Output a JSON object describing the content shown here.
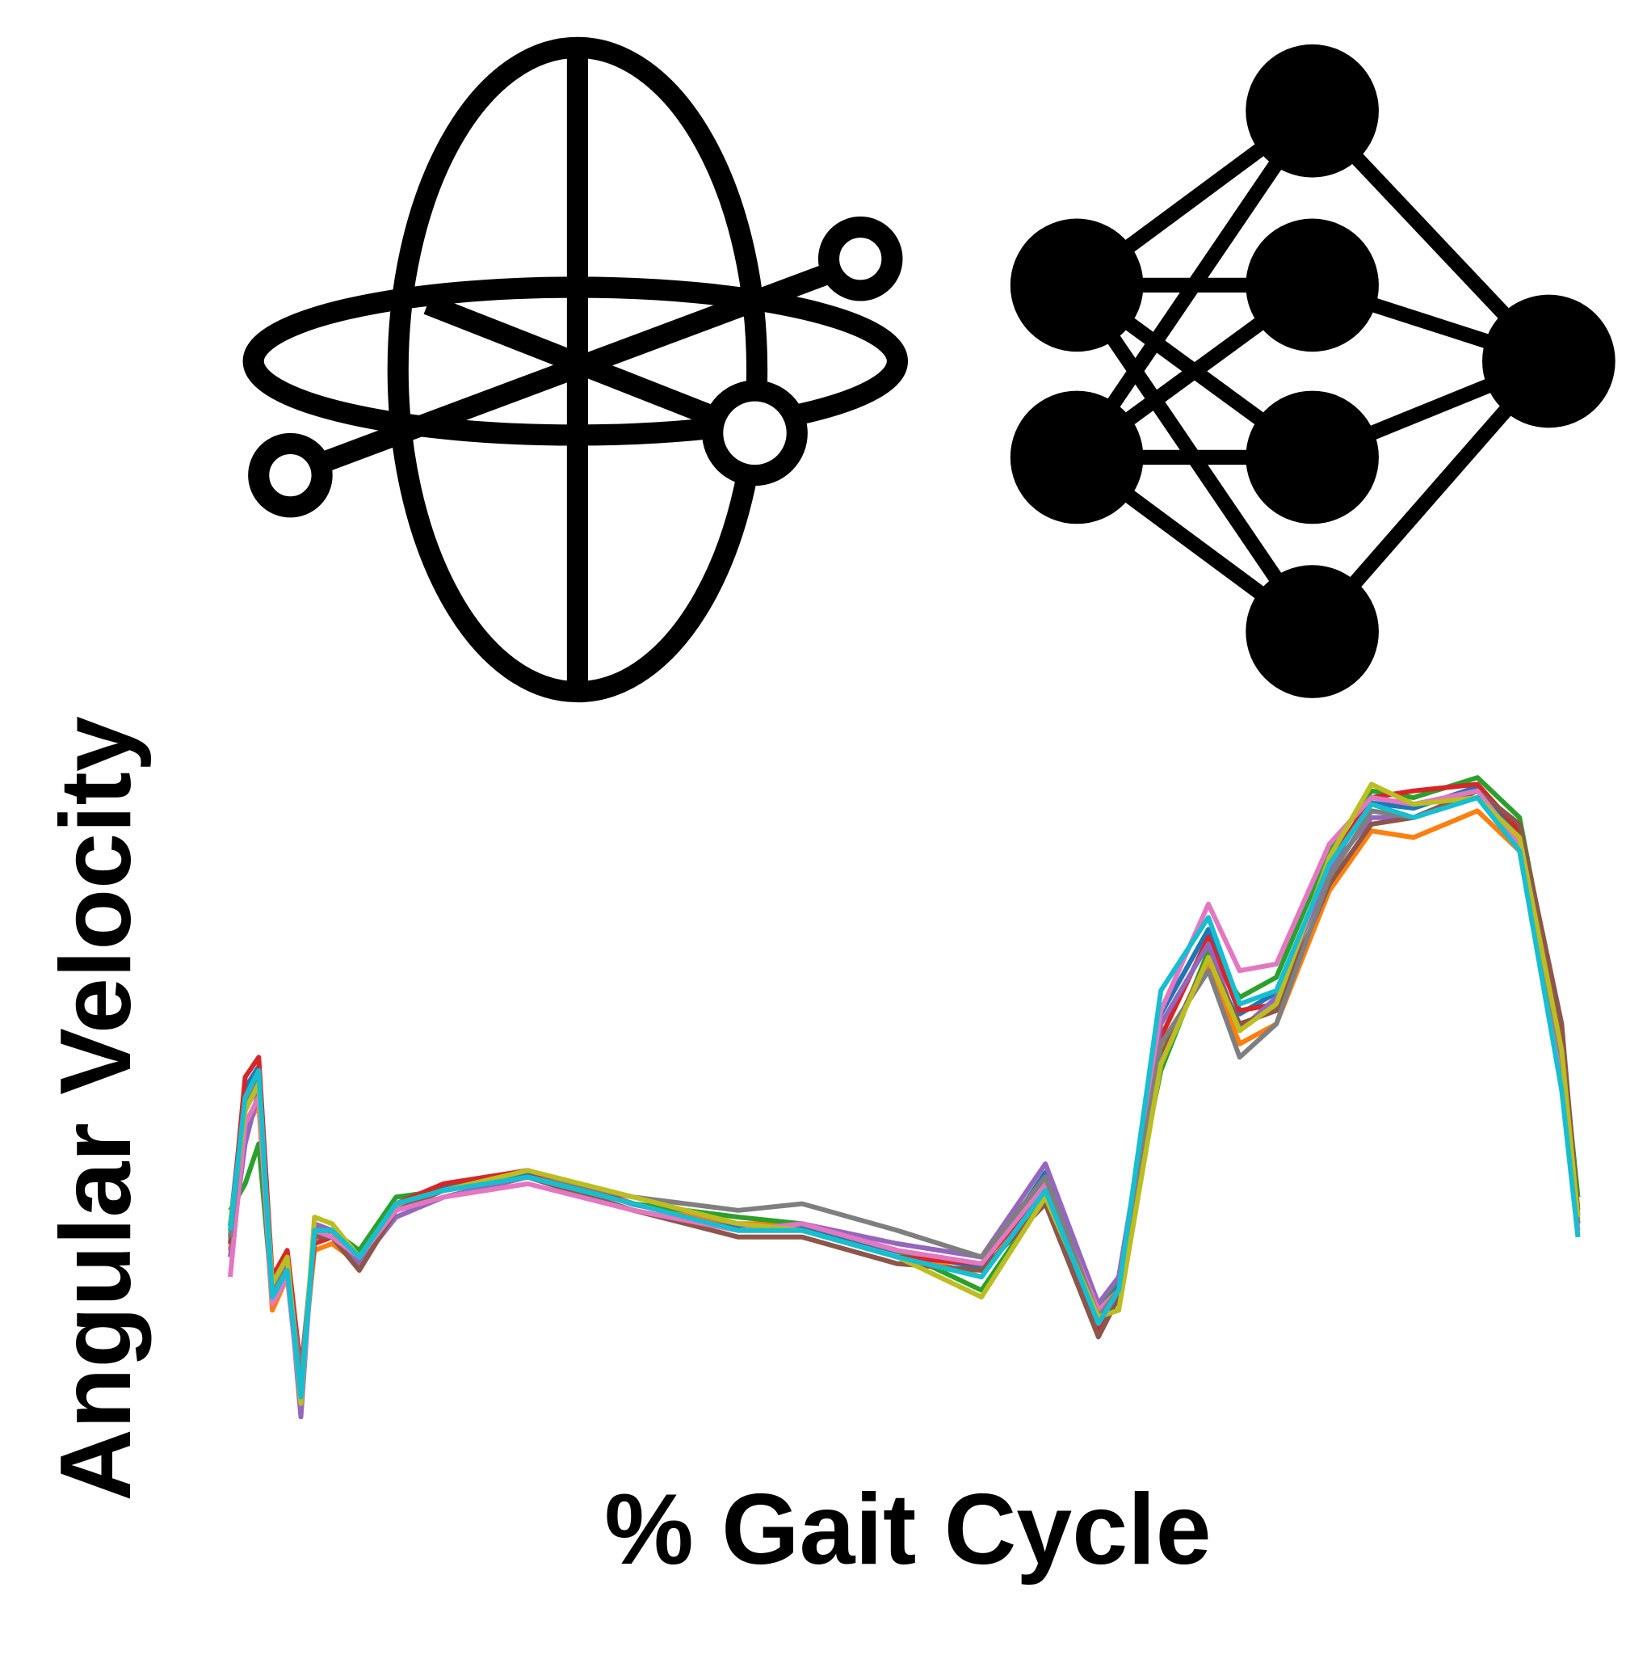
{
  "chart_data": {
    "type": "line",
    "x_label": "% Gait Cycle",
    "y_label": "Angular Velocity",
    "xlim": [
      0,
      100
    ],
    "ylim": [
      0,
      100
    ],
    "x": [
      0,
      1.1,
      2.1,
      3.1,
      4.2,
      5.2,
      6.2,
      7.5,
      9.5,
      12.2,
      15.7,
      21.9,
      29.7,
      37.4,
      42.1,
      49.1,
      55.3,
      60,
      63.9,
      65.4,
      68.5,
      72,
      74.3,
      77,
      80.9,
      84,
      87.1,
      91.8,
      94.9,
      98,
      99.2
    ],
    "series": [
      {
        "color": "#1f77b4",
        "values": [
          31.7,
          52.4,
          55.6,
          22.2,
          27,
          4.8,
          31.7,
          30.9,
          27,
          34.9,
          37.3,
          39.7,
          34.9,
          31.7,
          31.7,
          27.8,
          25.4,
          39.7,
          18.3,
          23,
          63.5,
          76.2,
          63.5,
          66.7,
          85.7,
          95.2,
          94.4,
          97.6,
          90.5,
          57.1,
          33.3
        ]
      },
      {
        "color": "#ff7f0e",
        "values": [
          28,
          46,
          50,
          19,
          24,
          8,
          28,
          29,
          26,
          33,
          36,
          39,
          35,
          32,
          32,
          28,
          24,
          38,
          17,
          21,
          58,
          71,
          59,
          62,
          82,
          91,
          90,
          94,
          88,
          54,
          30
        ]
      },
      {
        "color": "#2ca02c",
        "values": [
          34,
          38,
          44,
          21,
          25,
          6,
          30,
          31,
          28,
          36,
          37,
          39,
          35,
          33,
          32,
          28,
          22,
          36,
          19,
          24,
          55,
          73,
          66,
          69,
          88,
          97,
          96,
          99,
          93,
          60,
          36
        ]
      },
      {
        "color": "#d62728",
        "values": [
          30,
          54,
          57,
          24,
          28,
          10,
          29,
          30,
          27,
          35,
          38,
          40,
          35,
          31,
          31,
          27,
          26,
          37,
          16,
          22,
          60,
          75,
          64,
          65,
          86,
          96,
          97,
          98,
          91,
          58,
          32
        ]
      },
      {
        "color": "#9467bd",
        "values": [
          27,
          44,
          52,
          20,
          26,
          3,
          32,
          31,
          26,
          33,
          36,
          39,
          34,
          31,
          32,
          29,
          27,
          41,
          20,
          24,
          62,
          74,
          61,
          66,
          85,
          93,
          93,
          96,
          89,
          56,
          31
        ]
      },
      {
        "color": "#8c564b",
        "values": [
          29,
          49,
          53,
          23,
          27,
          7,
          30,
          30,
          25,
          34,
          37,
          39,
          34,
          30,
          30,
          26,
          25,
          35,
          15,
          21,
          57,
          72,
          62,
          64,
          83,
          92,
          93,
          97,
          92,
          62,
          34
        ]
      },
      {
        "color": "#e377c2",
        "values": [
          24,
          47,
          51,
          20,
          24,
          5,
          31,
          30,
          27,
          34,
          36,
          38,
          34,
          31,
          32,
          28,
          26,
          38,
          19,
          22,
          64,
          80,
          70,
          71,
          89,
          96,
          95,
          97,
          89,
          55,
          31
        ]
      },
      {
        "color": "#7f7f7f",
        "values": [
          30,
          50,
          54,
          22,
          26,
          9,
          31,
          31,
          27,
          35,
          37,
          39,
          36,
          34,
          35,
          31,
          27,
          39,
          18,
          22,
          59,
          70,
          57,
          62,
          84,
          94,
          93,
          96,
          90,
          57,
          32
        ]
      },
      {
        "color": "#bcbd22",
        "values": [
          32,
          49,
          53,
          23,
          27,
          5,
          33,
          32,
          27,
          35,
          37,
          40,
          36,
          32,
          31,
          27,
          21,
          36,
          18,
          19,
          56,
          72,
          61,
          65,
          87,
          98,
          95,
          96,
          90,
          58,
          33
        ]
      },
      {
        "color": "#17becf",
        "values": [
          31,
          51,
          55,
          21,
          25,
          6,
          31,
          31,
          27,
          35,
          37,
          39,
          35,
          31,
          31,
          27,
          24,
          37,
          17,
          22,
          67,
          78,
          65,
          67,
          86,
          95,
          93,
          96,
          88,
          52,
          30
        ]
      }
    ]
  }
}
